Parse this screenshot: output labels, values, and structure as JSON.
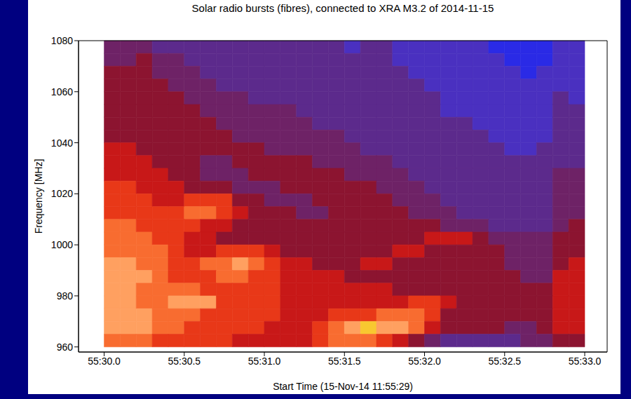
{
  "chart_data": {
    "type": "heatmap",
    "title": "Solar radio bursts (fibres), connected to XRA M3.2 of 2014-11-15",
    "x_label": "Start Time (15-Nov-14 11:55:29)",
    "y_label": "Frequency [MHz]",
    "xlim": [
      29.84,
      33.14
    ],
    "ylim": [
      958,
      1080
    ],
    "xticks": [
      {
        "value": 30,
        "label": "55:30.0"
      },
      {
        "value": 30.5,
        "label": "55:30.5"
      },
      {
        "value": 31,
        "label": "55:31.0"
      },
      {
        "value": 31.5,
        "label": "55:31.5"
      },
      {
        "value": 32,
        "label": "55:32.0"
      },
      {
        "value": 32.5,
        "label": "55:32.5"
      },
      {
        "value": 33,
        "label": "55:33.0"
      }
    ],
    "yticks": [
      960,
      980,
      1000,
      1020,
      1040,
      1060,
      1080
    ],
    "x_bins": [
      30,
      30.1,
      30.2,
      30.3,
      30.4,
      30.5,
      30.6,
      30.7,
      30.8,
      30.9,
      31,
      31.1,
      31.2,
      31.3,
      31.4,
      31.5,
      31.6,
      31.7,
      31.8,
      31.9,
      32,
      32.1,
      32.2,
      32.3,
      32.4,
      32.5,
      32.6,
      32.7,
      32.8,
      32.9,
      33
    ],
    "y_bins": [
      1080,
      1075,
      1070,
      1065,
      1060,
      1055,
      1050,
      1045,
      1040,
      1035,
      1030,
      1025,
      1020,
      1015,
      1010,
      1005,
      1000,
      995,
      990,
      985,
      980,
      975,
      970,
      965,
      960
    ],
    "colors": [
      "#2a2ae6",
      "#4a30c0",
      "#5c2a8c",
      "#6e2266",
      "#8c1430",
      "#c81818",
      "#e83818",
      "#f86c30",
      "#ffa060",
      "#f8c830"
    ],
    "cells": [
      [
        3,
        3,
        3,
        2,
        2,
        2,
        2,
        2,
        2,
        2,
        2,
        2,
        2,
        2,
        2,
        1,
        2,
        2,
        1,
        1,
        1,
        1,
        1,
        1,
        0,
        0,
        0,
        0,
        1,
        1
      ],
      [
        3,
        3,
        4,
        3,
        3,
        2,
        2,
        2,
        2,
        2,
        2,
        2,
        2,
        2,
        2,
        2,
        2,
        2,
        1,
        1,
        1,
        1,
        1,
        1,
        1,
        0,
        0,
        0,
        1,
        1
      ],
      [
        4,
        4,
        4,
        3,
        3,
        3,
        2,
        2,
        2,
        2,
        2,
        2,
        2,
        2,
        2,
        2,
        2,
        2,
        2,
        1,
        1,
        1,
        1,
        1,
        1,
        1,
        0,
        1,
        1,
        1
      ],
      [
        4,
        4,
        4,
        4,
        3,
        3,
        3,
        2,
        2,
        2,
        2,
        2,
        2,
        2,
        2,
        2,
        2,
        2,
        2,
        2,
        1,
        1,
        1,
        1,
        1,
        1,
        1,
        1,
        1,
        1
      ],
      [
        4,
        4,
        4,
        4,
        4,
        3,
        3,
        3,
        3,
        2,
        2,
        2,
        2,
        2,
        2,
        2,
        2,
        2,
        2,
        2,
        2,
        1,
        1,
        1,
        1,
        1,
        1,
        1,
        2,
        1
      ],
      [
        4,
        4,
        4,
        4,
        4,
        4,
        3,
        3,
        3,
        3,
        3,
        3,
        2,
        2,
        2,
        2,
        2,
        2,
        2,
        2,
        2,
        1,
        1,
        1,
        1,
        1,
        1,
        1,
        2,
        2
      ],
      [
        4,
        4,
        4,
        4,
        4,
        4,
        4,
        3,
        3,
        3,
        3,
        3,
        3,
        2,
        2,
        2,
        2,
        2,
        2,
        2,
        2,
        2,
        2,
        1,
        1,
        1,
        1,
        1,
        2,
        2
      ],
      [
        4,
        4,
        4,
        4,
        4,
        4,
        4,
        4,
        3,
        3,
        3,
        3,
        3,
        3,
        3,
        2,
        2,
        2,
        2,
        2,
        2,
        2,
        2,
        2,
        1,
        1,
        1,
        1,
        2,
        2
      ],
      [
        5,
        5,
        4,
        4,
        4,
        4,
        4,
        4,
        4,
        4,
        3,
        3,
        3,
        3,
        3,
        3,
        2,
        2,
        2,
        2,
        2,
        2,
        2,
        2,
        2,
        1,
        1,
        2,
        2,
        2
      ],
      [
        5,
        5,
        5,
        4,
        4,
        4,
        3,
        3,
        4,
        4,
        4,
        4,
        4,
        3,
        3,
        3,
        3,
        3,
        2,
        2,
        2,
        2,
        2,
        2,
        2,
        2,
        2,
        2,
        2,
        2
      ],
      [
        5,
        5,
        5,
        5,
        4,
        4,
        3,
        3,
        3,
        4,
        4,
        4,
        4,
        4,
        4,
        3,
        3,
        3,
        3,
        2,
        2,
        2,
        2,
        2,
        2,
        2,
        2,
        2,
        3,
        3
      ],
      [
        6,
        6,
        5,
        5,
        5,
        4,
        4,
        4,
        3,
        3,
        3,
        4,
        4,
        4,
        4,
        4,
        4,
        3,
        3,
        3,
        2,
        2,
        2,
        2,
        2,
        2,
        2,
        2,
        3,
        3
      ],
      [
        6,
        6,
        6,
        5,
        5,
        6,
        6,
        6,
        4,
        4,
        3,
        3,
        3,
        4,
        4,
        4,
        4,
        4,
        3,
        3,
        3,
        2,
        2,
        2,
        2,
        2,
        2,
        2,
        3,
        3
      ],
      [
        6,
        6,
        6,
        6,
        6,
        7,
        7,
        6,
        5,
        4,
        4,
        4,
        3,
        3,
        4,
        4,
        4,
        4,
        4,
        3,
        3,
        3,
        2,
        2,
        2,
        2,
        2,
        2,
        3,
        3
      ],
      [
        7,
        7,
        6,
        6,
        6,
        6,
        5,
        5,
        4,
        4,
        4,
        4,
        4,
        4,
        4,
        4,
        4,
        4,
        4,
        4,
        4,
        3,
        3,
        3,
        2,
        2,
        2,
        2,
        3,
        4
      ],
      [
        7,
        7,
        7,
        6,
        6,
        5,
        5,
        4,
        4,
        4,
        4,
        4,
        4,
        4,
        4,
        4,
        4,
        4,
        4,
        4,
        5,
        5,
        5,
        4,
        3,
        3,
        3,
        3,
        4,
        4
      ],
      [
        7,
        7,
        7,
        7,
        6,
        5,
        5,
        6,
        6,
        6,
        5,
        4,
        4,
        4,
        4,
        4,
        4,
        4,
        5,
        5,
        4,
        4,
        4,
        4,
        4,
        3,
        3,
        3,
        4,
        4
      ],
      [
        8,
        8,
        7,
        7,
        6,
        6,
        7,
        7,
        8,
        7,
        6,
        5,
        5,
        4,
        4,
        4,
        5,
        5,
        4,
        4,
        4,
        4,
        4,
        4,
        4,
        3,
        3,
        3,
        4,
        5
      ],
      [
        8,
        8,
        8,
        7,
        6,
        6,
        6,
        7,
        7,
        6,
        6,
        5,
        5,
        5,
        5,
        4,
        4,
        4,
        4,
        4,
        4,
        4,
        4,
        4,
        4,
        4,
        3,
        3,
        5,
        5
      ],
      [
        8,
        8,
        7,
        7,
        7,
        7,
        6,
        6,
        6,
        6,
        6,
        5,
        5,
        5,
        5,
        5,
        5,
        5,
        4,
        4,
        4,
        4,
        4,
        4,
        4,
        4,
        4,
        4,
        5,
        5
      ],
      [
        8,
        8,
        7,
        7,
        8,
        8,
        8,
        6,
        6,
        6,
        6,
        5,
        5,
        5,
        5,
        5,
        5,
        5,
        5,
        6,
        6,
        5,
        4,
        4,
        4,
        4,
        4,
        4,
        5,
        5
      ],
      [
        8,
        8,
        8,
        7,
        7,
        7,
        6,
        6,
        6,
        6,
        6,
        5,
        5,
        5,
        6,
        6,
        6,
        7,
        7,
        7,
        6,
        4,
        4,
        4,
        4,
        4,
        4,
        4,
        5,
        5
      ],
      [
        8,
        8,
        8,
        7,
        7,
        6,
        6,
        6,
        6,
        6,
        5,
        5,
        5,
        6,
        7,
        8,
        9,
        8,
        8,
        7,
        5,
        4,
        4,
        4,
        4,
        3,
        3,
        4,
        5,
        5
      ],
      [
        7,
        7,
        7,
        6,
        6,
        6,
        6,
        6,
        5,
        5,
        5,
        5,
        5,
        6,
        7,
        7,
        7,
        6,
        5,
        4,
        3,
        2,
        2,
        2,
        2,
        2,
        3,
        3,
        4,
        4
      ]
    ]
  }
}
